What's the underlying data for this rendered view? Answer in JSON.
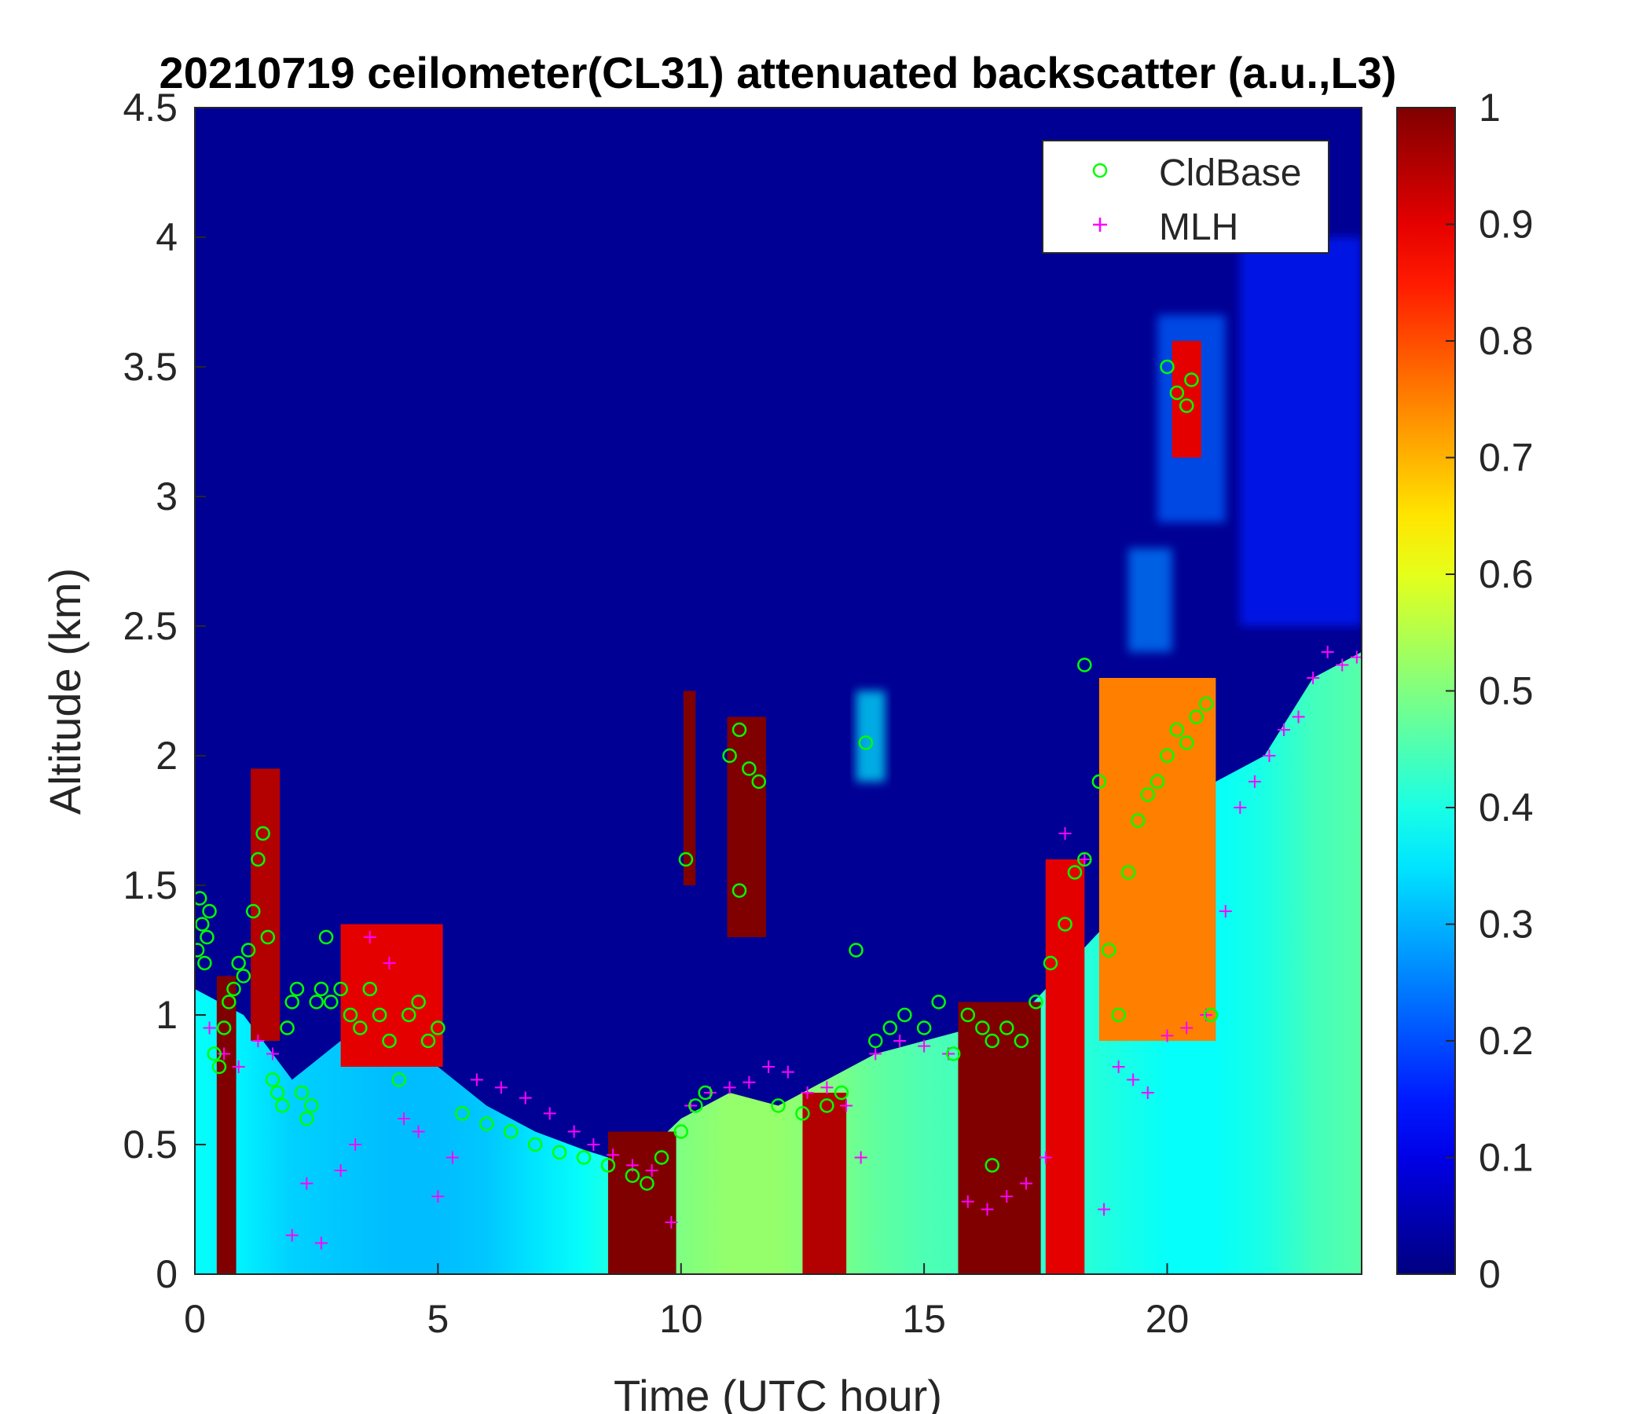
{
  "chart_data": {
    "type": "heatmap",
    "title": "20210719 ceilometer(CL31) attenuated backscatter (a.u.,L3)",
    "xlabel": "Time (UTC hour)",
    "ylabel": "Altitude (km)",
    "xlim": [
      0,
      24
    ],
    "ylim": [
      0,
      4.5
    ],
    "xticks": [
      0,
      5,
      10,
      15,
      20
    ],
    "xtick_labels": [
      "0",
      "5",
      "10",
      "15",
      "20"
    ],
    "yticks": [
      0,
      0.5,
      1,
      1.5,
      2,
      2.5,
      3,
      3.5,
      4,
      4.5
    ],
    "ytick_labels": [
      "0",
      "0.5",
      "1",
      "1.5",
      "2",
      "2.5",
      "3",
      "3.5",
      "4",
      "4.5"
    ],
    "colorbar": {
      "colormap": "jet",
      "range": [
        0,
        1
      ],
      "ticks": [
        0,
        0.1,
        0.2,
        0.3,
        0.4,
        0.5,
        0.6,
        0.7,
        0.8,
        0.9,
        1
      ],
      "tick_labels": [
        "0",
        "0.1",
        "0.2",
        "0.3",
        "0.4",
        "0.5",
        "0.6",
        "0.7",
        "0.8",
        "0.9",
        "1"
      ]
    },
    "grid": false,
    "legend": {
      "position": "top-right",
      "entries": [
        {
          "label": "CldBase",
          "marker": "circle",
          "color": "#00ff00"
        },
        {
          "label": "MLH",
          "marker": "plus",
          "color": "#ff00ff"
        }
      ]
    },
    "background_value": 0.02,
    "boundary_layer": {
      "description_values": "aerosol layer top height (km) and mean backscatter value",
      "x": [
        0,
        1,
        2,
        3,
        4,
        5,
        6,
        7,
        8,
        9,
        10,
        11,
        12,
        13,
        14,
        15,
        16,
        17,
        18,
        19,
        20,
        21,
        22,
        23,
        24
      ],
      "top": [
        1.1,
        1.0,
        0.75,
        0.9,
        0.9,
        0.8,
        0.65,
        0.55,
        0.48,
        0.42,
        0.6,
        0.7,
        0.65,
        0.75,
        0.85,
        0.9,
        0.95,
        1.0,
        1.2,
        1.4,
        1.7,
        1.9,
        2.0,
        2.3,
        2.4
      ],
      "value": [
        0.38,
        0.36,
        0.33,
        0.32,
        0.31,
        0.31,
        0.32,
        0.35,
        0.38,
        0.42,
        0.5,
        0.52,
        0.52,
        0.5,
        0.47,
        0.45,
        0.44,
        0.42,
        0.42,
        0.4,
        0.38,
        0.38,
        0.4,
        0.44,
        0.46
      ]
    },
    "high_backscatter_regions": [
      {
        "x0": 0.45,
        "x1": 0.85,
        "y0": 0.0,
        "y1": 1.15,
        "value": 1.0
      },
      {
        "x0": 1.15,
        "x1": 1.75,
        "y0": 0.9,
        "y1": 1.95,
        "value": 0.95
      },
      {
        "x0": 3.0,
        "x1": 5.1,
        "y0": 0.8,
        "y1": 1.35,
        "value": 0.9
      },
      {
        "x0": 8.5,
        "x1": 9.9,
        "y0": 0.0,
        "y1": 0.55,
        "value": 1.0
      },
      {
        "x0": 10.05,
        "x1": 10.3,
        "y0": 1.5,
        "y1": 2.25,
        "value": 1.0
      },
      {
        "x0": 10.95,
        "x1": 11.75,
        "y0": 1.3,
        "y1": 2.15,
        "value": 1.0
      },
      {
        "x0": 12.5,
        "x1": 13.4,
        "y0": 0.0,
        "y1": 0.7,
        "value": 0.95
      },
      {
        "x0": 15.7,
        "x1": 17.4,
        "y0": 0.0,
        "y1": 1.05,
        "value": 1.0
      },
      {
        "x0": 17.5,
        "x1": 18.3,
        "y0": 0.0,
        "y1": 1.6,
        "value": 0.9
      },
      {
        "x0": 18.6,
        "x1": 21.0,
        "y0": 0.9,
        "y1": 2.3,
        "value": 0.75
      },
      {
        "x0": 20.1,
        "x1": 20.7,
        "y0": 3.15,
        "y1": 3.6,
        "value": 0.9
      }
    ],
    "light_scatter_regions": [
      {
        "x0": 13.6,
        "x1": 14.2,
        "y0": 1.9,
        "y1": 2.25,
        "value": 0.35
      },
      {
        "x0": 19.2,
        "x1": 20.1,
        "y0": 2.4,
        "y1": 2.8,
        "value": 0.25
      },
      {
        "x0": 19.8,
        "x1": 21.2,
        "y0": 2.9,
        "y1": 3.7,
        "value": 0.22
      },
      {
        "x0": 21.5,
        "x1": 24.0,
        "y0": 2.5,
        "y1": 4.0,
        "value": 0.15
      }
    ],
    "series": [
      {
        "name": "CldBase",
        "x": [
          0.05,
          0.1,
          0.15,
          0.2,
          0.25,
          0.3,
          0.4,
          0.5,
          0.6,
          0.7,
          0.8,
          0.9,
          1.0,
          1.1,
          1.2,
          1.3,
          1.4,
          1.5,
          1.6,
          1.7,
          1.8,
          1.9,
          2.0,
          2.1,
          2.2,
          2.3,
          2.4,
          2.5,
          2.6,
          2.7,
          2.8,
          3.0,
          3.2,
          3.4,
          3.6,
          3.8,
          4.0,
          4.2,
          4.4,
          4.6,
          4.8,
          5.0,
          5.5,
          6.0,
          6.5,
          7.0,
          7.5,
          8.0,
          8.5,
          9.0,
          9.3,
          9.6,
          10.0,
          10.3,
          10.5,
          11.0,
          11.2,
          11.4,
          11.6,
          12.0,
          12.5,
          13.0,
          13.3,
          13.6,
          13.8,
          14.0,
          14.3,
          14.6,
          15.0,
          15.3,
          15.6,
          15.9,
          16.2,
          16.4,
          16.7,
          17.0,
          17.3,
          17.6,
          17.9,
          18.1,
          18.3,
          18.6,
          18.8,
          19.0,
          19.2,
          19.4,
          19.6,
          19.8,
          20.0,
          20.2,
          20.4,
          20.6,
          20.8,
          20.9
        ],
        "y": [
          1.25,
          1.45,
          1.35,
          1.2,
          1.3,
          1.4,
          0.85,
          0.8,
          0.95,
          1.05,
          1.1,
          1.2,
          1.15,
          1.25,
          1.4,
          1.6,
          1.7,
          1.3,
          0.75,
          0.7,
          0.65,
          0.95,
          1.05,
          1.1,
          0.7,
          0.6,
          0.65,
          1.05,
          1.1,
          1.3,
          1.05,
          1.1,
          1.0,
          0.95,
          1.1,
          1.0,
          0.9,
          0.75,
          1.0,
          1.05,
          0.9,
          0.95,
          0.62,
          0.58,
          0.55,
          0.5,
          0.47,
          0.45,
          0.42,
          0.38,
          0.35,
          0.45,
          0.55,
          0.65,
          0.7,
          2.0,
          2.1,
          1.95,
          1.9,
          0.65,
          0.62,
          0.65,
          0.7,
          1.25,
          2.05,
          0.9,
          0.95,
          1.0,
          0.95,
          1.05,
          0.85,
          1.0,
          0.95,
          0.9,
          0.95,
          0.9,
          1.05,
          1.2,
          1.35,
          1.55,
          1.6,
          1.9,
          1.25,
          1.0,
          1.55,
          1.75,
          1.85,
          1.9,
          2.0,
          2.1,
          2.05,
          2.15,
          2.2,
          1.0
        ],
        "extra": [
          {
            "x": 18.3,
            "y": 2.35
          },
          {
            "x": 20.0,
            "y": 3.5
          },
          {
            "x": 20.2,
            "y": 3.4
          },
          {
            "x": 20.4,
            "y": 3.35
          },
          {
            "x": 20.5,
            "y": 3.45
          },
          {
            "x": 16.4,
            "y": 0.42
          },
          {
            "x": 10.1,
            "y": 1.6
          },
          {
            "x": 11.2,
            "y": 1.48
          }
        ]
      },
      {
        "name": "MLH",
        "x": [
          0.3,
          0.6,
          0.9,
          1.3,
          1.6,
          2.0,
          2.3,
          2.6,
          3.0,
          3.3,
          3.6,
          4.0,
          4.3,
          4.6,
          5.0,
          5.3,
          5.8,
          6.3,
          6.8,
          7.3,
          7.8,
          8.2,
          8.6,
          9.0,
          9.4,
          9.8,
          10.2,
          10.6,
          11.0,
          11.4,
          11.8,
          12.2,
          12.6,
          13.0,
          13.4,
          13.7,
          14.0,
          14.5,
          15.0,
          15.5,
          15.9,
          16.3,
          16.7,
          17.1,
          17.5,
          17.9,
          18.3,
          18.7,
          19.0,
          19.3,
          19.6,
          20.0,
          20.4,
          20.8,
          21.2,
          21.5,
          21.8,
          22.1,
          22.4,
          22.7,
          23.0,
          23.3,
          23.6,
          23.9
        ],
        "y": [
          0.95,
          0.85,
          0.8,
          0.9,
          0.85,
          0.15,
          0.35,
          0.12,
          0.4,
          0.5,
          1.3,
          1.2,
          0.6,
          0.55,
          0.3,
          0.45,
          0.75,
          0.72,
          0.68,
          0.62,
          0.55,
          0.5,
          0.46,
          0.42,
          0.4,
          0.2,
          0.65,
          0.7,
          0.72,
          0.74,
          0.8,
          0.78,
          0.7,
          0.72,
          0.65,
          0.45,
          0.85,
          0.9,
          0.88,
          0.85,
          0.28,
          0.25,
          0.3,
          0.35,
          0.45,
          1.7,
          1.6,
          0.25,
          0.8,
          0.75,
          0.7,
          0.92,
          0.95,
          1.0,
          1.4,
          1.8,
          1.9,
          2.0,
          2.1,
          2.15,
          2.3,
          2.4,
          2.35,
          2.38
        ]
      }
    ]
  }
}
